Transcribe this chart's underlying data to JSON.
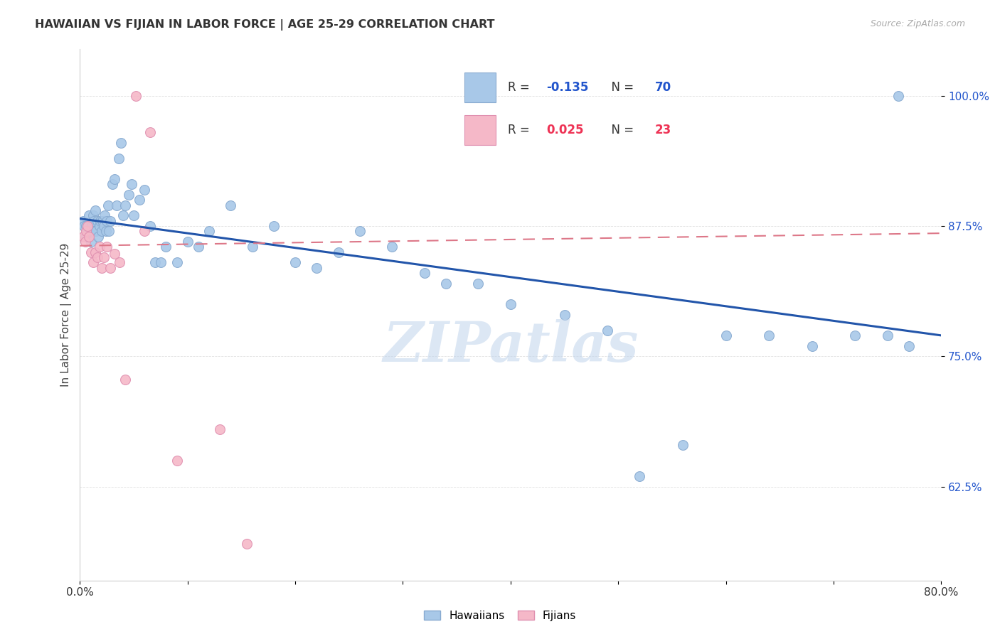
{
  "title": "HAWAIIAN VS FIJIAN IN LABOR FORCE | AGE 25-29 CORRELATION CHART",
  "source": "Source: ZipAtlas.com",
  "ylabel": "In Labor Force | Age 25-29",
  "xlim": [
    0.0,
    0.8
  ],
  "ylim": [
    0.535,
    1.045
  ],
  "xticks": [
    0.0,
    0.1,
    0.2,
    0.3,
    0.4,
    0.5,
    0.6,
    0.7,
    0.8
  ],
  "xticklabels": [
    "0.0%",
    "",
    "",
    "",
    "",
    "",
    "",
    "",
    "80.0%"
  ],
  "yticks": [
    0.625,
    0.75,
    0.875,
    1.0
  ],
  "yticklabels": [
    "62.5%",
    "75.0%",
    "87.5%",
    "100.0%"
  ],
  "hawaiians_x": [
    0.003,
    0.004,
    0.005,
    0.006,
    0.007,
    0.008,
    0.009,
    0.01,
    0.011,
    0.012,
    0.012,
    0.013,
    0.014,
    0.015,
    0.016,
    0.017,
    0.018,
    0.019,
    0.02,
    0.021,
    0.022,
    0.023,
    0.024,
    0.025,
    0.026,
    0.027,
    0.028,
    0.03,
    0.032,
    0.034,
    0.036,
    0.038,
    0.04,
    0.042,
    0.045,
    0.048,
    0.05,
    0.055,
    0.06,
    0.065,
    0.07,
    0.075,
    0.08,
    0.09,
    0.1,
    0.11,
    0.12,
    0.14,
    0.16,
    0.18,
    0.2,
    0.22,
    0.24,
    0.26,
    0.29,
    0.32,
    0.34,
    0.37,
    0.4,
    0.45,
    0.49,
    0.52,
    0.56,
    0.6,
    0.64,
    0.68,
    0.72,
    0.75,
    0.77,
    0.76
  ],
  "hawaiians_y": [
    0.88,
    0.875,
    0.865,
    0.875,
    0.87,
    0.885,
    0.87,
    0.86,
    0.875,
    0.87,
    0.885,
    0.88,
    0.89,
    0.87,
    0.88,
    0.865,
    0.875,
    0.88,
    0.87,
    0.88,
    0.875,
    0.885,
    0.87,
    0.88,
    0.895,
    0.87,
    0.88,
    0.915,
    0.92,
    0.895,
    0.94,
    0.955,
    0.885,
    0.895,
    0.905,
    0.915,
    0.885,
    0.9,
    0.91,
    0.875,
    0.84,
    0.84,
    0.855,
    0.84,
    0.86,
    0.855,
    0.87,
    0.895,
    0.855,
    0.875,
    0.84,
    0.835,
    0.85,
    0.87,
    0.855,
    0.83,
    0.82,
    0.82,
    0.8,
    0.79,
    0.775,
    0.635,
    0.665,
    0.77,
    0.77,
    0.76,
    0.77,
    0.77,
    0.76,
    1.0
  ],
  "fijians_x": [
    0.003,
    0.005,
    0.006,
    0.007,
    0.008,
    0.01,
    0.012,
    0.014,
    0.016,
    0.018,
    0.02,
    0.022,
    0.025,
    0.028,
    0.032,
    0.037,
    0.042,
    0.052,
    0.13,
    0.06,
    0.09,
    0.065,
    0.155
  ],
  "fijians_y": [
    0.865,
    0.86,
    0.87,
    0.875,
    0.865,
    0.85,
    0.84,
    0.85,
    0.845,
    0.855,
    0.835,
    0.845,
    0.855,
    0.835,
    0.848,
    0.84,
    0.728,
    1.0,
    0.68,
    0.87,
    0.65,
    0.965,
    0.57
  ],
  "blue_marker_color": "#a8c8e8",
  "blue_edge_color": "#88aad0",
  "pink_marker_color": "#f5b8c8",
  "pink_edge_color": "#e090b0",
  "blue_line_color": "#2255aa",
  "pink_line_color": "#dd7788",
  "marker_size": 100,
  "watermark": "ZIPatlas",
  "watermark_color": "#c0d4ec",
  "background_color": "#ffffff",
  "grid_color": "#dddddd",
  "blue_r": -0.135,
  "blue_n": 70,
  "pink_r": 0.025,
  "pink_n": 23
}
